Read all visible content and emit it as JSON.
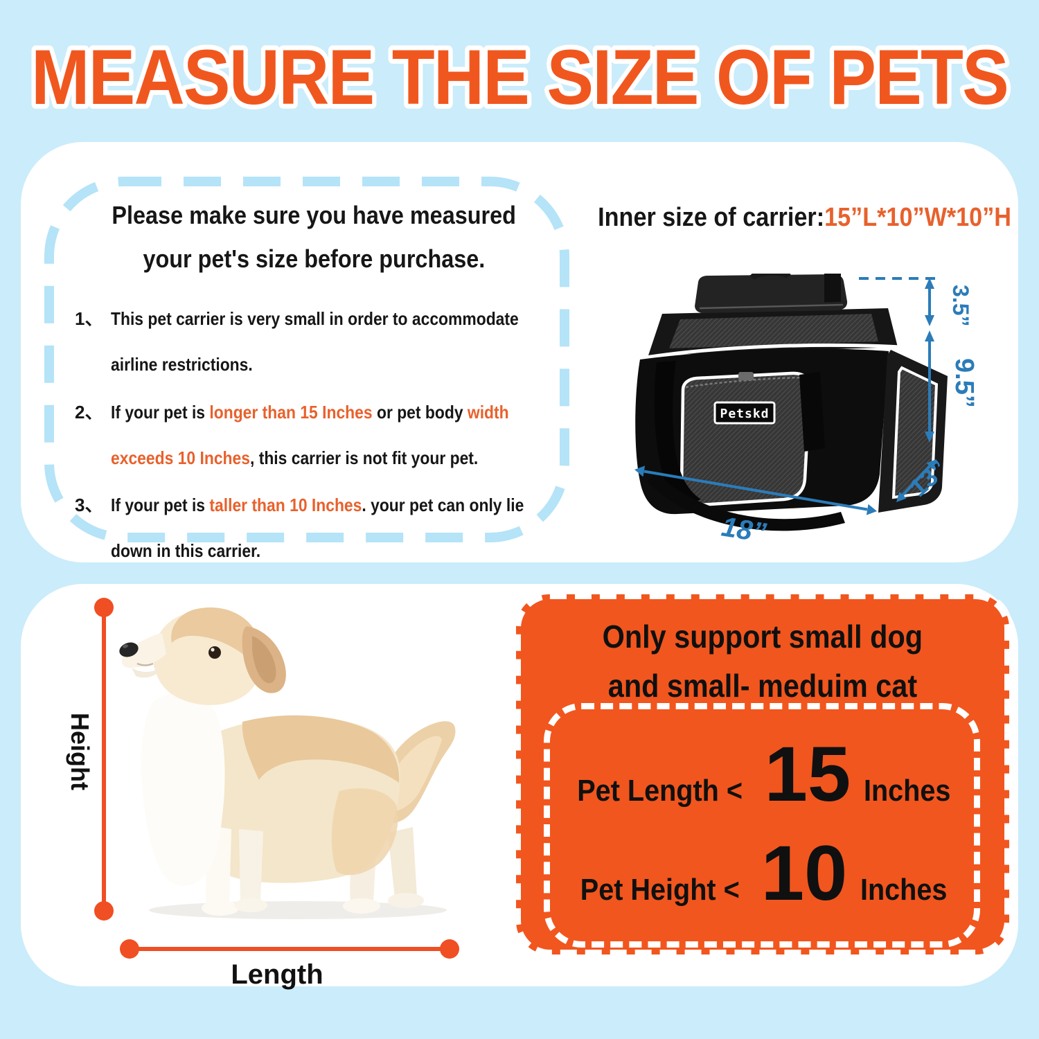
{
  "colors": {
    "background": "#cbecfa",
    "panel": "#ffffff",
    "title_orange": "#f0571f",
    "accent_orange": "#e8612c",
    "stamp_orange": "#f1561e",
    "dimension_blue": "#2b7cb9",
    "dash_blue": "#b5e3f7",
    "measure_orange": "#f04e23",
    "ink": "#1c1c1c"
  },
  "title": "MEASURE THE SIZE OF PETS",
  "notice": {
    "heading_line1": "Please make sure you have measured",
    "heading_line2": "your pet's size before purchase.",
    "items": [
      {
        "num": "1、",
        "segments": [
          {
            "t": "This pet carrier is very small in order  to accommodate"
          },
          {
            "br": true
          },
          {
            "t": "airline restrictions."
          }
        ]
      },
      {
        "num": "2、",
        "segments": [
          {
            "t": "If your pet is "
          },
          {
            "t": "longer than 15 Inches",
            "c": "orange"
          },
          {
            "t": " or pet body "
          },
          {
            "t": "width",
            "c": "orange"
          },
          {
            "br": true
          },
          {
            "t": "exceeds 10 Inches",
            "c": "orange"
          },
          {
            "t": ", this carrier is not fit your pet."
          }
        ]
      },
      {
        "num": "3、",
        "segments": [
          {
            "t": "If your pet is "
          },
          {
            "t": "taller than 10 Inches",
            "c": "orange"
          },
          {
            "t": ". your pet can only lie"
          },
          {
            "br": true
          },
          {
            "t": "down in this carrier."
          }
        ]
      }
    ]
  },
  "carrier": {
    "heading_label": "Inner size of carrier:",
    "heading_value": "15”L*10”W*10”H",
    "logo": "Petskd",
    "dims": {
      "top_height": "3.5”",
      "height": "9.5”",
      "depth": "13”",
      "length": "18”"
    }
  },
  "measure": {
    "height_label": "Height",
    "length_label": "Length"
  },
  "stamp": {
    "heading_line1": "Only support small dog",
    "heading_line2": "and small- meduim cat",
    "limits": [
      {
        "label": "Pet Length <",
        "value": "15",
        "unit": "Inches"
      },
      {
        "label": "Pet Height <",
        "value": "10",
        "unit": "Inches"
      }
    ]
  }
}
